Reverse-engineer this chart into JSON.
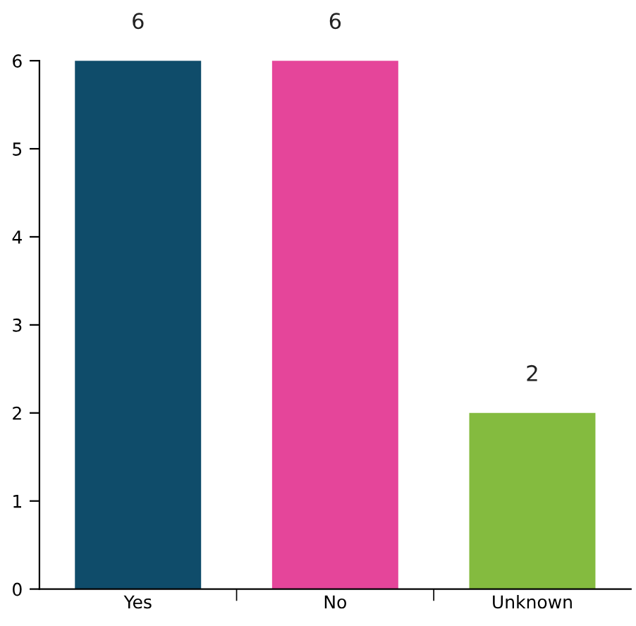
{
  "chart_data": {
    "type": "bar",
    "categories": [
      "Yes",
      "No",
      "Unknown"
    ],
    "values": [
      6,
      6,
      2
    ],
    "colors": [
      "#0f4c6a",
      "#e5459a",
      "#84bb3f"
    ],
    "ylim": [
      0,
      6
    ],
    "yticks": [
      0,
      1,
      2,
      3,
      4,
      5,
      6
    ],
    "data_labels": true,
    "grid": false
  }
}
